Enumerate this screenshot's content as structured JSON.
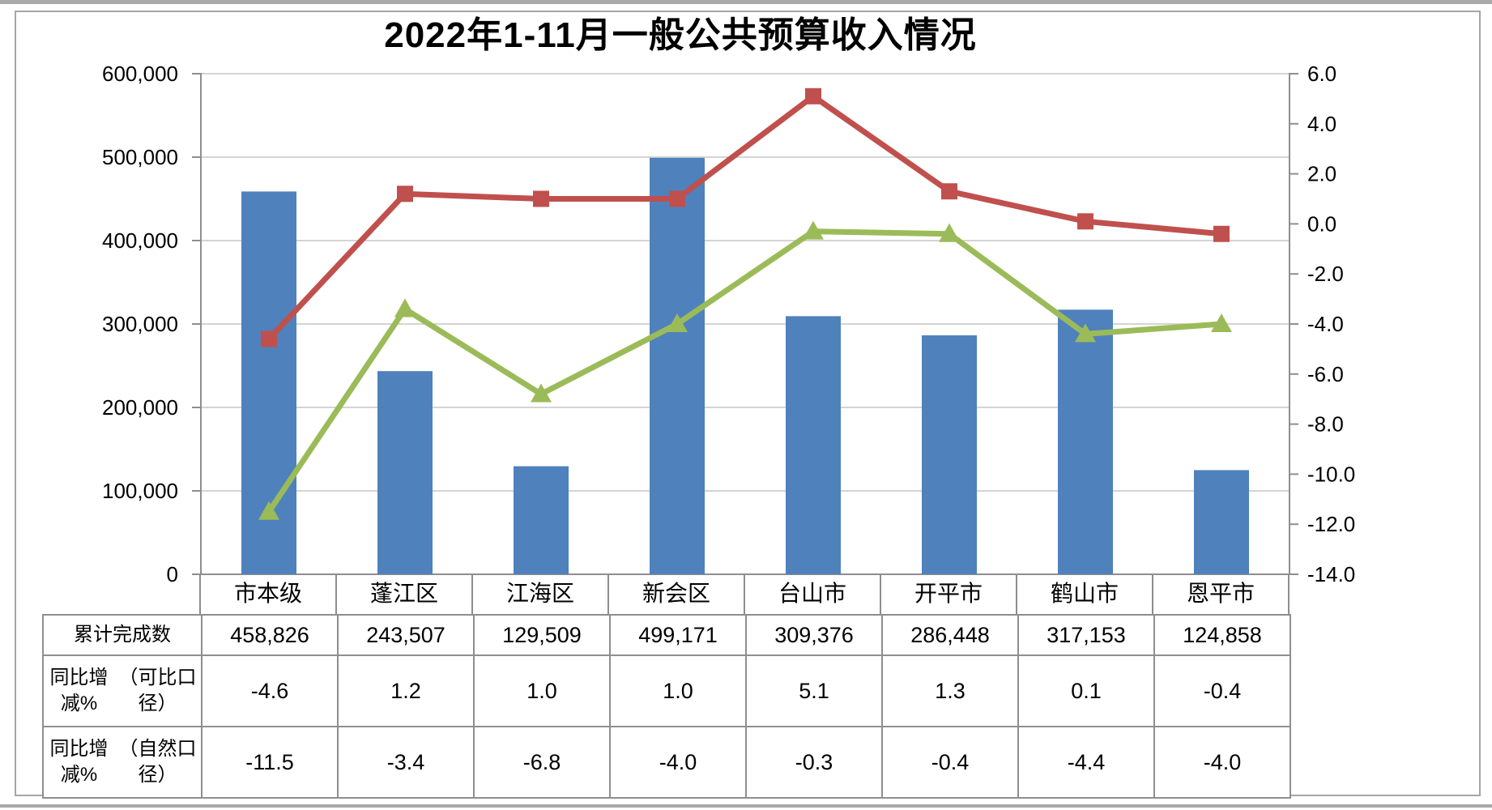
{
  "title": "2022年1-11月一般公共预算收入情况",
  "colors": {
    "bar": "#4F81BD",
    "line_comparable": "#C0504D",
    "line_natural": "#9BBB59",
    "gridline": "#c6c6c6",
    "axis": "#8e8e8e",
    "table_border": "#8e8e8e"
  },
  "chart_data": {
    "type": "bar",
    "subtype": "combo-bar-line-dual-axis",
    "title": "2022年1-11月一般公共预算收入情况",
    "categories": [
      "市本级",
      "蓬江区",
      "江海区",
      "新会区",
      "台山市",
      "开平市",
      "鹤山市",
      "恩平市"
    ],
    "series": [
      {
        "name": "累计完成数",
        "type": "bar",
        "axis": "left",
        "marker": "none",
        "color": "#4F81BD",
        "values": [
          458826,
          243507,
          129509,
          499171,
          309376,
          286448,
          317153,
          124858
        ]
      },
      {
        "name": "同比增减%（可比口径）",
        "type": "line",
        "axis": "right",
        "marker": "square",
        "color": "#C0504D",
        "values": [
          -4.6,
          1.2,
          1.0,
          1.0,
          5.1,
          1.3,
          0.1,
          -0.4
        ]
      },
      {
        "name": "同比增减%（自然口径）",
        "type": "line",
        "axis": "right",
        "marker": "triangle",
        "color": "#9BBB59",
        "values": [
          -11.5,
          -3.4,
          -6.8,
          -4.0,
          -0.3,
          -0.4,
          -4.4,
          -4.0
        ]
      }
    ],
    "left_axis": {
      "min": 0,
      "max": 600000,
      "step": 100000,
      "tick_labels": [
        "600,000",
        "500,000",
        "400,000",
        "300,000",
        "200,000",
        "100,000",
        "0"
      ]
    },
    "right_axis": {
      "min": -14.0,
      "max": 6.0,
      "step": 2.0,
      "tick_labels": [
        "6.0",
        "4.0",
        "2.0",
        "0.0",
        "-2.0",
        "-4.0",
        "-6.0",
        "-8.0",
        "-10.0",
        "-12.0",
        "-14.0"
      ]
    },
    "grid": true,
    "legend": "none (data table below chart)"
  },
  "table": {
    "rows": [
      {
        "label_lines": [
          "累计完成数"
        ],
        "values": [
          "458,826",
          "243,507",
          "129,509",
          "499,171",
          "309,376",
          "286,448",
          "317,153",
          "124,858"
        ]
      },
      {
        "label_lines": [
          "同比增减%",
          "（可比口径）"
        ],
        "values": [
          "-4.6",
          "1.2",
          "1.0",
          "1.0",
          "5.1",
          "1.3",
          "0.1",
          "-0.4"
        ]
      },
      {
        "label_lines": [
          "同比增减%",
          "（自然口径）"
        ],
        "values": [
          "-11.5",
          "-3.4",
          "-6.8",
          "-4.0",
          "-0.3",
          "-0.4",
          "-4.4",
          "-4.0"
        ]
      }
    ]
  }
}
